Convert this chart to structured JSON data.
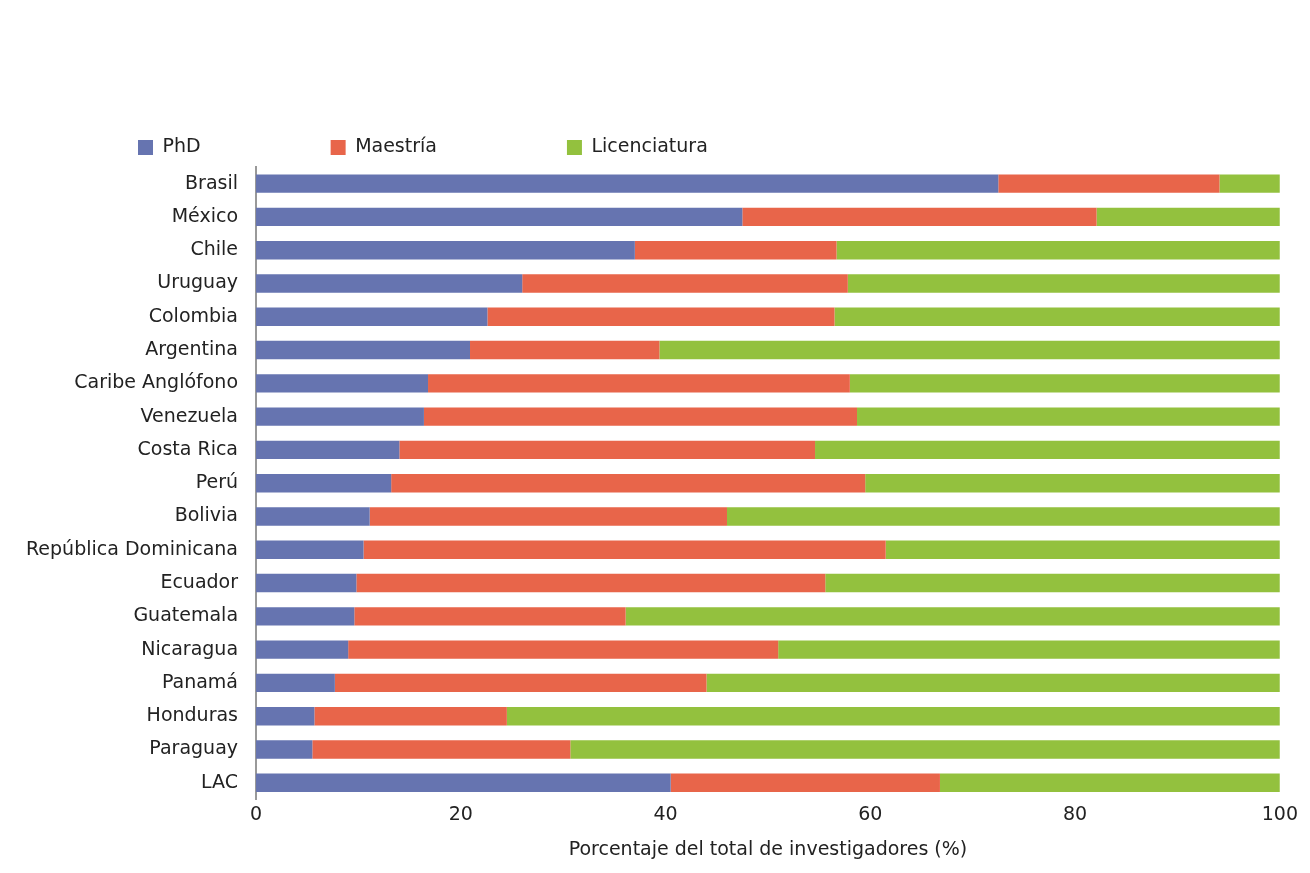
{
  "chart_data": {
    "type": "bar",
    "orientation": "horizontal",
    "stacked": true,
    "xlabel": "Porcentaje del total de investigadores (%)",
    "categories": [
      "Brasil",
      "México",
      "Chile",
      "Uruguay",
      "Colombia",
      "Argentina",
      "Caribe Anglófono",
      "Venezuela",
      "Costa Rica",
      "Perú",
      "Bolivia",
      "República Dominicana",
      "Ecuador",
      "Guatemala",
      "Nicaragua",
      "Panamá",
      "Honduras",
      "Paraguay",
      "LAC"
    ],
    "series": [
      {
        "name": "PhD",
        "color": "#6674b0",
        "values": [
          72.5,
          47.5,
          37.0,
          26.0,
          22.6,
          20.9,
          16.8,
          16.4,
          14.0,
          13.2,
          11.1,
          10.5,
          9.8,
          9.6,
          9.0,
          7.7,
          5.7,
          5.5,
          40.5
        ]
      },
      {
        "name": "Maestría",
        "color": "#e8654a",
        "values": [
          21.6,
          34.6,
          19.7,
          31.8,
          33.9,
          18.5,
          41.2,
          42.3,
          40.6,
          46.3,
          34.9,
          51.0,
          45.8,
          26.5,
          42.0,
          36.3,
          18.8,
          25.2,
          26.3
        ]
      },
      {
        "name": "Licenciatura",
        "color": "#93c13e",
        "values": [
          5.9,
          17.9,
          43.3,
          42.2,
          43.5,
          60.6,
          42.0,
          41.3,
          45.4,
          40.5,
          54.0,
          38.5,
          44.4,
          63.9,
          49.0,
          56.0,
          75.5,
          69.3,
          33.2
        ]
      }
    ],
    "xlim": [
      0,
      100
    ],
    "xticks": [
      0,
      20,
      40,
      60,
      80,
      100
    ],
    "grid": false,
    "legend": "top left"
  }
}
